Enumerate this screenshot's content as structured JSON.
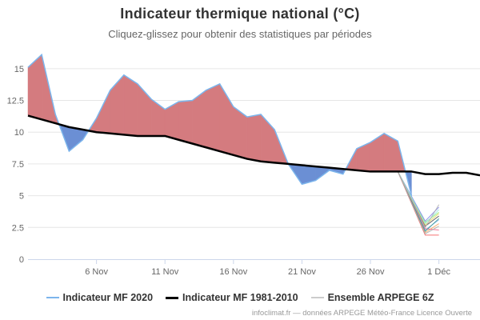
{
  "chart_data": {
    "type": "area",
    "title": "Indicateur thermique national (°C)",
    "subtitle": "Cliquez-glissez pour obtenir des statistiques par périodes",
    "ylim": [
      0,
      16.5
    ],
    "y_ticks": [
      0,
      2.5,
      5,
      7.5,
      10,
      12.5,
      15
    ],
    "y_tick_labels": [
      "0",
      "2.5",
      "5",
      "7.5",
      "10",
      "12.5",
      "15"
    ],
    "x_range": [
      "2020-11-01",
      "2020-12-04"
    ],
    "x_ticks": [
      "2020-11-06",
      "2020-11-11",
      "2020-11-16",
      "2020-11-21",
      "2020-11-26",
      "2020-12-01"
    ],
    "x_tick_labels": [
      "6 Nov",
      "11 Nov",
      "16 Nov",
      "21 Nov",
      "26 Nov",
      "1 Déc"
    ],
    "grid": true,
    "legend_position": "bottom",
    "fill_above_color": "#d47b7f",
    "fill_below_color": "#6b8fd4",
    "series": [
      {
        "name": "Indicateur MF 2020",
        "color": "#7cb5ec",
        "x": [
          "2020-11-01",
          "2020-11-02",
          "2020-11-03",
          "2020-11-04",
          "2020-11-05",
          "2020-11-06",
          "2020-11-07",
          "2020-11-08",
          "2020-11-09",
          "2020-11-10",
          "2020-11-11",
          "2020-11-12",
          "2020-11-13",
          "2020-11-14",
          "2020-11-15",
          "2020-11-16",
          "2020-11-17",
          "2020-11-18",
          "2020-11-19",
          "2020-11-20",
          "2020-11-21",
          "2020-11-22",
          "2020-11-23",
          "2020-11-24",
          "2020-11-25",
          "2020-11-26",
          "2020-11-27",
          "2020-11-28",
          "2020-11-29"
        ],
        "values": [
          15.1,
          16.1,
          11.4,
          8.5,
          9.4,
          11.1,
          13.3,
          14.5,
          13.8,
          12.6,
          11.8,
          12.4,
          12.5,
          13.3,
          13.8,
          12.0,
          11.2,
          11.4,
          10.2,
          7.5,
          5.9,
          6.2,
          7.0,
          6.7,
          8.7,
          9.2,
          9.9,
          9.3,
          5.0
        ]
      },
      {
        "name": "Indicateur MF 1981-2010",
        "color": "#000000",
        "x": [
          "2020-11-01",
          "2020-11-02",
          "2020-11-03",
          "2020-11-04",
          "2020-11-05",
          "2020-11-06",
          "2020-11-07",
          "2020-11-08",
          "2020-11-09",
          "2020-11-10",
          "2020-11-11",
          "2020-11-12",
          "2020-11-13",
          "2020-11-14",
          "2020-11-15",
          "2020-11-16",
          "2020-11-17",
          "2020-11-18",
          "2020-11-19",
          "2020-11-20",
          "2020-11-21",
          "2020-11-22",
          "2020-11-23",
          "2020-11-24",
          "2020-11-25",
          "2020-11-26",
          "2020-11-27",
          "2020-11-28",
          "2020-11-29",
          "2020-11-30",
          "2020-12-01",
          "2020-12-02",
          "2020-12-03",
          "2020-12-04"
        ],
        "values": [
          11.3,
          11.0,
          10.7,
          10.4,
          10.2,
          10.0,
          9.9,
          9.8,
          9.7,
          9.7,
          9.7,
          9.4,
          9.1,
          8.8,
          8.5,
          8.2,
          7.9,
          7.7,
          7.6,
          7.5,
          7.4,
          7.3,
          7.2,
          7.1,
          7.0,
          6.9,
          6.9,
          6.9,
          6.9,
          6.7,
          6.7,
          6.8,
          6.8,
          6.6
        ]
      },
      {
        "name": "Ensemble ARPEGE 6Z",
        "color": "#cccccc",
        "members": [
          {
            "color": "#7cb5ec",
            "x": [
              "2020-11-28",
              "2020-11-30",
              "2020-12-01"
            ],
            "values": [
              6.9,
              2.3,
              3.1
            ]
          },
          {
            "color": "#434348",
            "x": [
              "2020-11-28",
              "2020-11-30",
              "2020-12-01"
            ],
            "values": [
              6.9,
              2.6,
              3.4
            ]
          },
          {
            "color": "#90ed7d",
            "x": [
              "2020-11-28",
              "2020-11-30",
              "2020-12-01"
            ],
            "values": [
              6.9,
              2.9,
              3.7
            ]
          },
          {
            "color": "#f7a35c",
            "x": [
              "2020-11-28",
              "2020-11-30",
              "2020-12-01"
            ],
            "values": [
              6.9,
              2.1,
              2.8
            ]
          },
          {
            "color": "#8085e9",
            "x": [
              "2020-11-28",
              "2020-11-30",
              "2020-12-01"
            ],
            "values": [
              6.9,
              3.0,
              4.1
            ]
          },
          {
            "color": "#f15c80",
            "x": [
              "2020-11-28",
              "2020-11-30",
              "2020-12-01"
            ],
            "values": [
              6.9,
              2.4,
              2.3
            ]
          },
          {
            "color": "#e4d354",
            "x": [
              "2020-11-28",
              "2020-11-30",
              "2020-12-01"
            ],
            "values": [
              6.9,
              2.7,
              3.6
            ]
          },
          {
            "color": "#2b908f",
            "x": [
              "2020-11-28",
              "2020-11-30",
              "2020-12-01"
            ],
            "values": [
              6.9,
              2.2,
              3.2
            ]
          },
          {
            "color": "#f45b5b",
            "x": [
              "2020-11-28",
              "2020-11-30",
              "2020-12-01"
            ],
            "values": [
              6.9,
              1.9,
              1.9
            ]
          },
          {
            "color": "#91e8e1",
            "x": [
              "2020-11-28",
              "2020-11-30",
              "2020-12-01"
            ],
            "values": [
              6.9,
              2.8,
              3.9
            ]
          },
          {
            "color": "#b0b0b0",
            "x": [
              "2020-11-28",
              "2020-11-30",
              "2020-12-01"
            ],
            "values": [
              6.9,
              2.5,
              4.3
            ]
          },
          {
            "color": "#aaaaaa",
            "x": [
              "2020-11-28",
              "2020-11-30",
              "2020-12-01"
            ],
            "values": [
              6.9,
              2.0,
              2.6
            ]
          }
        ]
      }
    ]
  },
  "credits": "infoclimat.fr — données ARPEGE Météo-France Licence Ouverte"
}
